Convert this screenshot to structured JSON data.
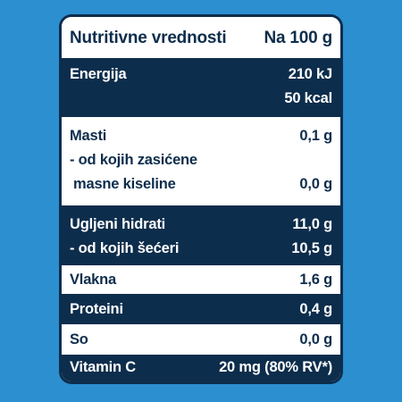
{
  "header": {
    "title": "Nutritivne vrednosti",
    "per": "Na 100 g"
  },
  "rows": {
    "energy": {
      "label": "Energija",
      "value_kj": "210 kJ",
      "value_kcal": "50 kcal"
    },
    "fat": {
      "label": "Masti",
      "value": "0,1 g",
      "sub_label_1": "- od kojih zasićene",
      "sub_label_2": "masne kiseline",
      "sub_value": "0,0 g"
    },
    "carbs": {
      "label": "Ugljeni hidrati",
      "value": "11,0 g",
      "sub_label": "- od kojih šećeri",
      "sub_value": "10,5 g"
    },
    "fiber": {
      "label": "Vlakna",
      "value": "1,6 g"
    },
    "protein": {
      "label": "Proteini",
      "value": "0,4 g"
    },
    "salt": {
      "label": "So",
      "value": "0,0 g"
    },
    "vitamin_c": {
      "label": "Vitamin C",
      "value": "20 mg (80% RV*)"
    }
  }
}
